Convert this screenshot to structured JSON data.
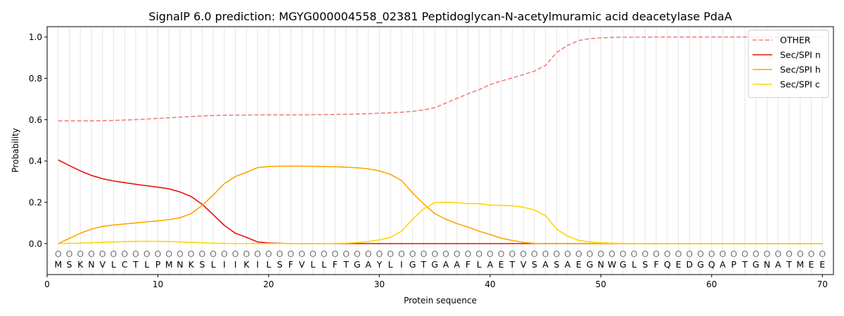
{
  "chart_data": {
    "type": "line",
    "title": "SignalP 6.0 prediction: MGYG000004558_02381 Peptidoglycan-N-acetylmuramic acid deacetylase PdaA",
    "xlabel": "Protein sequence",
    "ylabel": "Probability",
    "xlim": [
      0,
      71
    ],
    "ylim": [
      -0.15,
      1.05
    ],
    "xticks": [
      0,
      10,
      20,
      30,
      40,
      50,
      60,
      70
    ],
    "yticks": [
      0.0,
      0.2,
      0.4,
      0.6,
      0.8,
      1.0
    ],
    "x_tick_labels": [
      "0",
      "10",
      "20",
      "30",
      "40",
      "50",
      "60",
      "70"
    ],
    "y_tick_labels": [
      "0.0",
      "0.2",
      "0.4",
      "0.6",
      "0.8",
      "1.0"
    ],
    "vertical_grid": true,
    "legend_position": "top-right",
    "sequence": [
      "M",
      "S",
      "K",
      "N",
      "V",
      "L",
      "C",
      "T",
      "L",
      "P",
      "M",
      "N",
      "K",
      "S",
      "L",
      "I",
      "I",
      "K",
      "I",
      "L",
      "S",
      "F",
      "V",
      "L",
      "L",
      "F",
      "T",
      "G",
      "A",
      "Y",
      "L",
      "I",
      "G",
      "T",
      "G",
      "A",
      "A",
      "F",
      "L",
      "A",
      "E",
      "T",
      "V",
      "S",
      "A",
      "S",
      "A",
      "E",
      "G",
      "N",
      "W",
      "G",
      "L",
      "S",
      "F",
      "Q",
      "E",
      "D",
      "G",
      "Q",
      "A",
      "P",
      "T",
      "G",
      "N",
      "A",
      "T",
      "M",
      "E",
      "E"
    ],
    "sequence_marker": "O",
    "x": [
      1,
      2,
      3,
      4,
      5,
      6,
      7,
      8,
      9,
      10,
      11,
      12,
      13,
      14,
      15,
      16,
      17,
      18,
      19,
      20,
      21,
      22,
      23,
      24,
      25,
      26,
      27,
      28,
      29,
      30,
      31,
      32,
      33,
      34,
      35,
      36,
      37,
      38,
      39,
      40,
      41,
      42,
      43,
      44,
      45,
      46,
      47,
      48,
      49,
      50,
      51,
      52,
      53,
      54,
      55,
      56,
      57,
      58,
      59,
      60,
      61,
      62,
      63,
      64,
      65,
      66,
      67,
      68,
      69,
      70
    ],
    "series": [
      {
        "name": "OTHER",
        "color": "#f08080",
        "style": "dashed",
        "values": [
          0.594,
          0.594,
          0.594,
          0.594,
          0.595,
          0.596,
          0.598,
          0.6,
          0.603,
          0.606,
          0.609,
          0.612,
          0.615,
          0.618,
          0.62,
          0.621,
          0.622,
          0.622,
          0.623,
          0.623,
          0.623,
          0.623,
          0.623,
          0.624,
          0.624,
          0.625,
          0.626,
          0.627,
          0.629,
          0.631,
          0.633,
          0.636,
          0.64,
          0.647,
          0.658,
          0.68,
          0.703,
          0.725,
          0.745,
          0.77,
          0.787,
          0.802,
          0.818,
          0.835,
          0.862,
          0.925,
          0.96,
          0.983,
          0.992,
          0.996,
          0.998,
          0.999,
          0.999,
          0.999,
          1.0,
          1.0,
          1.0,
          1.0,
          1.0,
          1.0,
          1.0,
          1.0,
          1.0,
          1.0,
          1.0,
          1.0,
          1.0,
          1.0,
          1.0,
          1.0
        ]
      },
      {
        "name": "Sec/SPI n",
        "color": "#e8120c",
        "style": "solid",
        "values": [
          0.405,
          0.378,
          0.352,
          0.33,
          0.314,
          0.303,
          0.295,
          0.287,
          0.28,
          0.273,
          0.265,
          0.25,
          0.228,
          0.19,
          0.14,
          0.088,
          0.05,
          0.03,
          0.008,
          0.003,
          0.001,
          0,
          0,
          0,
          0,
          0,
          0,
          0,
          0,
          0,
          0,
          0,
          0,
          0,
          0,
          0,
          0,
          0,
          0,
          0,
          0,
          0,
          0,
          0,
          0,
          0,
          0,
          0,
          0,
          0,
          0,
          0,
          0,
          0,
          0,
          0,
          0,
          0,
          0,
          0,
          0,
          0,
          0,
          0,
          0,
          0,
          0,
          0,
          0,
          0
        ]
      },
      {
        "name": "Sec/SPI h",
        "color": "#ffa500",
        "style": "solid",
        "values": [
          0.0,
          0.025,
          0.05,
          0.07,
          0.083,
          0.09,
          0.095,
          0.1,
          0.105,
          0.11,
          0.116,
          0.125,
          0.145,
          0.185,
          0.235,
          0.29,
          0.325,
          0.345,
          0.368,
          0.373,
          0.375,
          0.375,
          0.375,
          0.374,
          0.373,
          0.372,
          0.37,
          0.367,
          0.362,
          0.352,
          0.335,
          0.305,
          0.245,
          0.192,
          0.145,
          0.118,
          0.097,
          0.08,
          0.06,
          0.044,
          0.026,
          0.015,
          0.006,
          0.001,
          0,
          0,
          0,
          0,
          0,
          0,
          0,
          0,
          0,
          0,
          0,
          0,
          0,
          0,
          0,
          0,
          0,
          0,
          0,
          0,
          0,
          0,
          0,
          0,
          0,
          0
        ]
      },
      {
        "name": "Sec/SPI c",
        "color": "#ffd700",
        "style": "solid",
        "values": [
          0.0,
          0.001,
          0.002,
          0.004,
          0.006,
          0.008,
          0.01,
          0.011,
          0.011,
          0.011,
          0.01,
          0.008,
          0.006,
          0.004,
          0.002,
          0.001,
          0.0,
          0.0,
          0.0,
          0.0,
          0.0,
          0.0,
          0.0,
          0.0,
          0.0,
          0.001,
          0.002,
          0.005,
          0.01,
          0.018,
          0.03,
          0.06,
          0.118,
          0.168,
          0.198,
          0.2,
          0.198,
          0.193,
          0.193,
          0.186,
          0.185,
          0.183,
          0.176,
          0.163,
          0.135,
          0.07,
          0.036,
          0.015,
          0.008,
          0.004,
          0.002,
          0.001,
          0,
          0,
          0,
          0,
          0,
          0,
          0,
          0,
          0,
          0,
          0,
          0,
          0,
          0,
          0,
          0,
          0,
          0
        ]
      }
    ]
  }
}
